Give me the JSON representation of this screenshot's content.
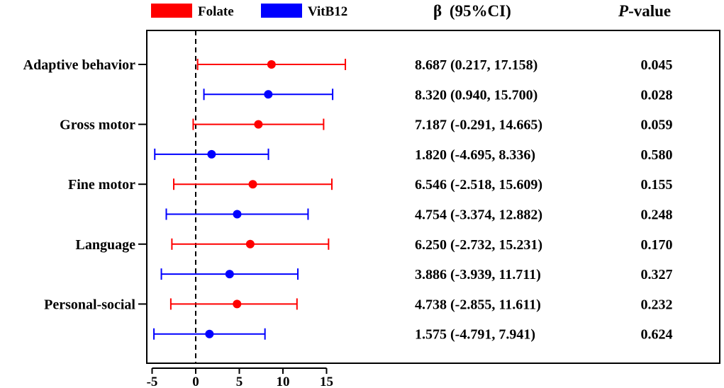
{
  "chart_data": {
    "type": "forest",
    "legend": [
      {
        "name": "Folate",
        "color": "#ff0000"
      },
      {
        "name": "VitB12",
        "color": "#0000ff"
      }
    ],
    "col_headers": {
      "ci_greek": "β",
      "ci_rest": "(95%CI)",
      "p_italic": "P",
      "p_rest": "-value"
    },
    "domains": [
      "Adaptive behavior",
      "Gross motor",
      "Fine motor",
      "Language",
      "Personal-social"
    ],
    "rows": [
      {
        "domain": "Adaptive behavior",
        "series": "Folate",
        "beta": 8.687,
        "lo": 0.217,
        "hi": 17.158,
        "ci_text": "8.687 (0.217, 17.158)",
        "p": "0.045"
      },
      {
        "domain": "Adaptive behavior",
        "series": "VitB12",
        "beta": 8.32,
        "lo": 0.94,
        "hi": 15.7,
        "ci_text": "8.320 (0.940, 15.700)",
        "p": "0.028"
      },
      {
        "domain": "Gross motor",
        "series": "Folate",
        "beta": 7.187,
        "lo": -0.291,
        "hi": 14.665,
        "ci_text": "7.187 (-0.291, 14.665)",
        "p": "0.059"
      },
      {
        "domain": "Gross motor",
        "series": "VitB12",
        "beta": 1.82,
        "lo": -4.695,
        "hi": 8.336,
        "ci_text": "1.820 (-4.695, 8.336)",
        "p": "0.580"
      },
      {
        "domain": "Fine motor",
        "series": "Folate",
        "beta": 6.546,
        "lo": -2.518,
        "hi": 15.609,
        "ci_text": "6.546 (-2.518, 15.609)",
        "p": "0.155"
      },
      {
        "domain": "Fine motor",
        "series": "VitB12",
        "beta": 4.754,
        "lo": -3.374,
        "hi": 12.882,
        "ci_text": "4.754 (-3.374, 12.882)",
        "p": "0.248"
      },
      {
        "domain": "Language",
        "series": "Folate",
        "beta": 6.25,
        "lo": -2.732,
        "hi": 15.231,
        "ci_text": "6.250 (-2.732, 15.231)",
        "p": "0.170"
      },
      {
        "domain": "Language",
        "series": "VitB12",
        "beta": 3.886,
        "lo": -3.939,
        "hi": 11.711,
        "ci_text": "3.886 (-3.939, 11.711)",
        "p": "0.327"
      },
      {
        "domain": "Personal-social",
        "series": "Folate",
        "beta": 4.738,
        "lo": -2.855,
        "hi": 11.611,
        "ci_text": "4.738 (-2.855, 11.611)",
        "p": "0.232"
      },
      {
        "domain": "Personal-social",
        "series": "VitB12",
        "beta": 1.575,
        "lo": -4.791,
        "hi": 7.941,
        "ci_text": "1.575 (-4.791, 7.941)",
        "p": "0.624"
      }
    ],
    "x_ticks": [
      -5,
      0,
      5,
      10,
      15
    ],
    "x_range": [
      -5,
      15
    ],
    "reference_line": 0
  }
}
